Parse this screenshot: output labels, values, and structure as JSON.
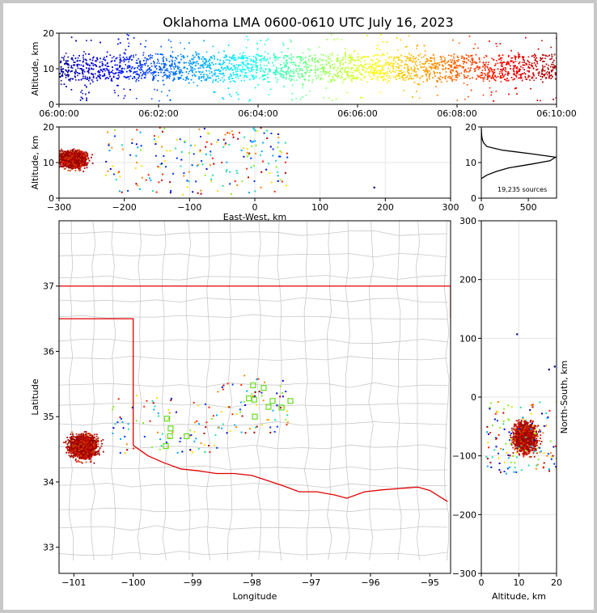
{
  "title": "Oklahoma LMA 0600-0610 UTC July 16, 2023",
  "chart_data": [
    {
      "type": "scatter",
      "panel": "altitude-time",
      "xlabel": "",
      "ylabel": "Altitude, km",
      "xlim": [
        "06:00:00",
        "06:10:00"
      ],
      "ylim": [
        0,
        20
      ],
      "xticks": [
        "06:00:00",
        "06:02:00",
        "06:04:00",
        "06:06:00",
        "06:08:00",
        "06:10:00"
      ],
      "yticks": [
        "0",
        "10",
        "20"
      ],
      "color_encoding": "time (blue to dark red)",
      "core_altitude_km": [
        7,
        14
      ],
      "scatter_altitude_km": [
        1,
        20
      ]
    },
    {
      "type": "scatter",
      "panel": "east-west-altitude",
      "xlabel": "East-West, km",
      "ylabel": "Altitude, km",
      "xlim": [
        -300,
        300
      ],
      "ylim": [
        0,
        20
      ],
      "xticks": [
        "−300",
        "−200",
        "−100",
        "0",
        "100",
        "200",
        "300"
      ],
      "yticks": [
        "0",
        "10",
        "20"
      ],
      "dense_cluster_ew_km": [
        -300,
        -230
      ],
      "sparse_ew_km": [
        -230,
        50
      ],
      "outlier": {
        "x": 183,
        "y": 3
      }
    },
    {
      "type": "line",
      "panel": "altitude-histogram",
      "xlabel": "",
      "ylabel": "",
      "xlim": [
        0,
        800
      ],
      "ylim": [
        0,
        20
      ],
      "xticks": [
        "0",
        "500"
      ],
      "yticks": [
        "0",
        "10",
        "20"
      ],
      "annotation": "19,235 sources",
      "profile": [
        {
          "alt": 5.5,
          "count": 0
        },
        {
          "alt": 6.5,
          "count": 60
        },
        {
          "alt": 7.5,
          "count": 160
        },
        {
          "alt": 8.5,
          "count": 290
        },
        {
          "alt": 9.5,
          "count": 520
        },
        {
          "alt": 10.5,
          "count": 730
        },
        {
          "alt": 11.5,
          "count": 790
        },
        {
          "alt": 12.5,
          "count": 520
        },
        {
          "alt": 13.5,
          "count": 220
        },
        {
          "alt": 14.5,
          "count": 60
        },
        {
          "alt": 15.5,
          "count": 25
        },
        {
          "alt": 16.5,
          "count": 10
        },
        {
          "alt": 17.5,
          "count": 4
        },
        {
          "alt": 18.5,
          "count": 2
        },
        {
          "alt": 19.5,
          "count": 1
        }
      ]
    },
    {
      "type": "scatter",
      "panel": "plan-view-map",
      "xlabel": "Longitude",
      "ylabel": "Latitude",
      "xlim": [
        -101.25,
        -94.65
      ],
      "ylim": [
        32.6,
        38.0
      ],
      "xticks": [
        "−101",
        "−100",
        "−99",
        "−98",
        "−97",
        "−96",
        "−95"
      ],
      "yticks": [
        "33",
        "34",
        "35",
        "36",
        "37"
      ],
      "dense_cluster": {
        "lon": [
          -101.25,
          -100.4
        ],
        "lat": [
          34.25,
          34.9
        ]
      },
      "stations": [
        {
          "lon": -97.98,
          "lat": 35.48
        },
        {
          "lon": -97.8,
          "lat": 35.44
        },
        {
          "lon": -98.05,
          "lat": 35.28
        },
        {
          "lon": -97.96,
          "lat": 35.26
        },
        {
          "lon": -97.65,
          "lat": 35.24
        },
        {
          "lon": -97.35,
          "lat": 35.24
        },
        {
          "lon": -97.72,
          "lat": 35.15
        },
        {
          "lon": -97.5,
          "lat": 35.14
        },
        {
          "lon": -97.95,
          "lat": 35.0
        },
        {
          "lon": -99.43,
          "lat": 34.97
        },
        {
          "lon": -99.37,
          "lat": 34.82
        },
        {
          "lon": -99.38,
          "lat": 34.7
        },
        {
          "lon": -99.1,
          "lat": 34.7
        },
        {
          "lon": -99.45,
          "lat": 34.55
        }
      ]
    },
    {
      "type": "scatter",
      "panel": "altitude-north-south",
      "xlabel": "Altitude, km",
      "ylabel": "North-South, km",
      "xlim": [
        0,
        20
      ],
      "ylim": [
        -300,
        300
      ],
      "xticks": [
        "0",
        "10",
        "20"
      ],
      "yticks": [
        "−300",
        "−200",
        "−100",
        "0",
        "100",
        "200",
        "300"
      ],
      "dense_cluster_ns_km": [
        -110,
        -15
      ],
      "outliers": [
        {
          "x": 9.5,
          "y": 107
        },
        {
          "x": 18,
          "y": 47
        },
        {
          "x": 19.5,
          "y": 52
        }
      ]
    }
  ]
}
